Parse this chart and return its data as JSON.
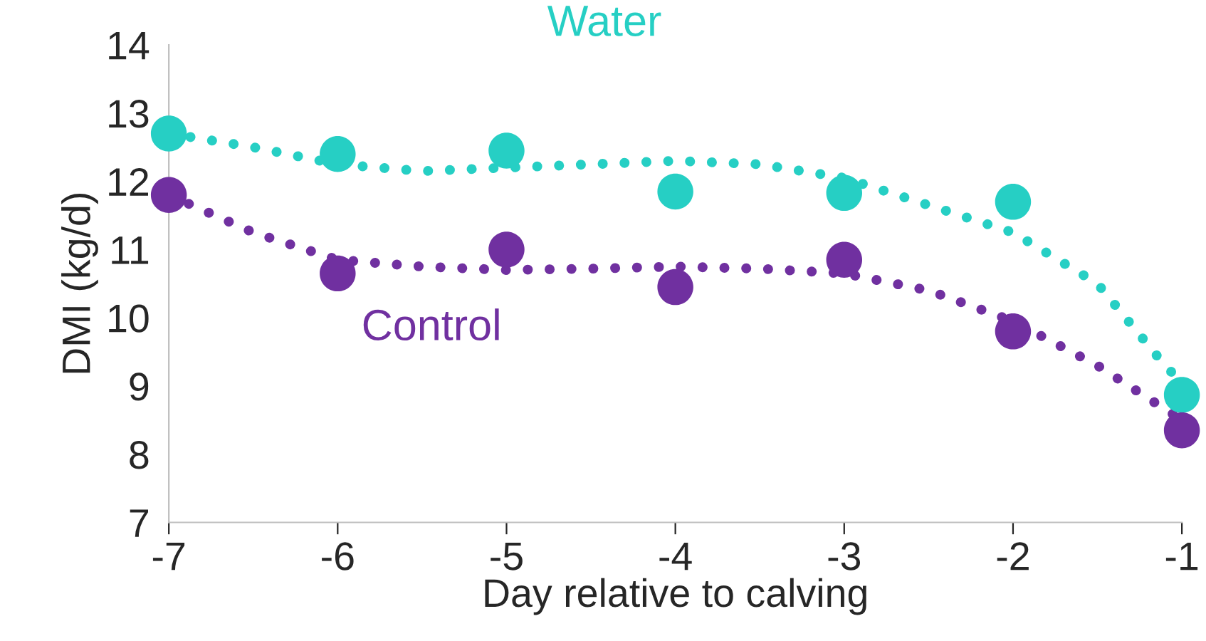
{
  "chart_data": {
    "type": "scatter",
    "xlabel": "Day relative to calving",
    "ylabel": "DMI (kg/d)",
    "xlim": [
      -7,
      -1
    ],
    "xticks": [
      -7,
      -6,
      -5,
      -4,
      -3,
      -2,
      -1
    ],
    "ylim": [
      7,
      14
    ],
    "yticks": [
      7,
      8,
      9,
      10,
      11,
      12,
      13,
      14
    ],
    "grid": false,
    "legend": false,
    "series": [
      {
        "name": "Water",
        "marker": "circle",
        "color": "#26cfc4",
        "x": [
          -7,
          -6,
          -5,
          -4,
          -3,
          -2,
          -1
        ],
        "values": [
          12.7,
          12.4,
          12.45,
          11.85,
          11.83,
          11.7,
          8.87
        ]
      },
      {
        "name": "Control",
        "marker": "circle",
        "color": "#7030a0",
        "x": [
          -7,
          -6,
          -5,
          -4,
          -3,
          -2,
          -1
        ],
        "values": [
          11.8,
          10.65,
          11.0,
          10.45,
          10.85,
          9.8,
          8.35
        ]
      },
      {
        "type": "line",
        "line_style": "dotted",
        "marker": "none",
        "color": "#26cfc4",
        "x": [
          -7,
          -6.5,
          -6,
          -5.5,
          -5,
          -4.5,
          -4,
          -3.5,
          -3,
          -2.5,
          -2,
          -1.5,
          -1.1,
          -1
        ],
        "values": [
          12.7,
          12.5,
          12.25,
          12.15,
          12.2,
          12.25,
          12.3,
          12.25,
          12.05,
          11.65,
          11.25,
          10.5,
          9.3,
          9.05
        ]
      },
      {
        "type": "line",
        "line_style": "dotted",
        "marker": "none",
        "color": "#7030a0",
        "x": [
          -7,
          -6.5,
          -6,
          -5.5,
          -5,
          -4.5,
          -4,
          -3.5,
          -3,
          -2.5,
          -2,
          -1.5,
          -1
        ],
        "values": [
          11.8,
          11.25,
          10.85,
          10.75,
          10.7,
          10.72,
          10.75,
          10.72,
          10.65,
          10.4,
          9.95,
          9.3,
          8.5
        ]
      }
    ]
  }
}
